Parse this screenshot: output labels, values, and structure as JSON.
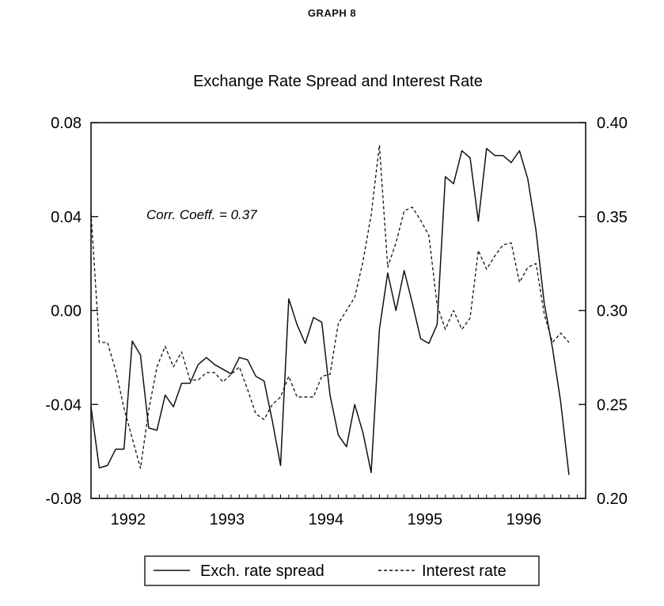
{
  "graph_label": "GRAPH 8",
  "chart_data": {
    "type": "line",
    "title": "Exchange Rate Spread and Interest Rate",
    "annotation": "Corr. Coeff. = 0.37",
    "x_start": 1991.75,
    "x_step": 0.0833,
    "xlim": [
      1991.75,
      1996.75
    ],
    "x_tick_labels": [
      {
        "label": "1992",
        "x": 1992.125
      },
      {
        "label": "1993",
        "x": 1993.125
      },
      {
        "label": "1994",
        "x": 1994.125
      },
      {
        "label": "1995",
        "x": 1995.125
      },
      {
        "label": "1996",
        "x": 1996.125
      }
    ],
    "y_left": {
      "range": [
        -0.08,
        0.08
      ],
      "tick_values": [
        -0.08,
        -0.04,
        0.0,
        0.04,
        0.08
      ],
      "tick_labels": [
        "-0.08",
        "-0.04",
        "0.00",
        "0.04",
        "0.08"
      ]
    },
    "y_right": {
      "range": [
        0.2,
        0.4
      ],
      "tick_values": [
        0.2,
        0.25,
        0.3,
        0.35,
        0.4
      ],
      "tick_labels": [
        "0.20",
        "0.25",
        "0.30",
        "0.35",
        "0.40"
      ]
    },
    "series": [
      {
        "name": "Exch. rate spread",
        "axis": "left",
        "style": "solid",
        "values": [
          -0.041,
          -0.067,
          -0.066,
          -0.059,
          -0.059,
          -0.013,
          -0.019,
          -0.05,
          -0.051,
          -0.036,
          -0.041,
          -0.031,
          -0.031,
          -0.023,
          -0.02,
          -0.023,
          -0.025,
          -0.027,
          -0.02,
          -0.021,
          -0.028,
          -0.03,
          -0.047,
          -0.066,
          0.005,
          -0.006,
          -0.014,
          -0.003,
          -0.005,
          -0.036,
          -0.053,
          -0.058,
          -0.04,
          -0.052,
          -0.069,
          -0.008,
          0.016,
          0.0,
          0.017,
          0.003,
          -0.012,
          -0.014,
          -0.006,
          0.057,
          0.054,
          0.068,
          0.065,
          0.038,
          0.069,
          0.066,
          0.066,
          0.063,
          0.068,
          0.056,
          0.034,
          0.003,
          -0.016,
          -0.039,
          -0.07
        ]
      },
      {
        "name": "Interest rate",
        "axis": "right",
        "style": "dashed",
        "values": [
          0.352,
          0.283,
          0.283,
          0.268,
          0.248,
          0.232,
          0.216,
          0.247,
          0.27,
          0.281,
          0.27,
          0.278,
          0.263,
          0.263,
          0.267,
          0.267,
          0.262,
          0.266,
          0.27,
          0.258,
          0.245,
          0.242,
          0.25,
          0.254,
          0.265,
          0.254,
          0.254,
          0.254,
          0.265,
          0.266,
          0.293,
          0.3,
          0.307,
          0.326,
          0.351,
          0.388,
          0.323,
          0.336,
          0.353,
          0.355,
          0.348,
          0.34,
          0.303,
          0.29,
          0.3,
          0.29,
          0.296,
          0.332,
          0.322,
          0.329,
          0.335,
          0.336,
          0.315,
          0.323,
          0.325,
          0.298,
          0.283,
          0.288,
          0.283
        ]
      }
    ],
    "legend": {
      "position": "bottom",
      "entries": [
        "Exch. rate spread",
        "Interest rate"
      ]
    }
  }
}
